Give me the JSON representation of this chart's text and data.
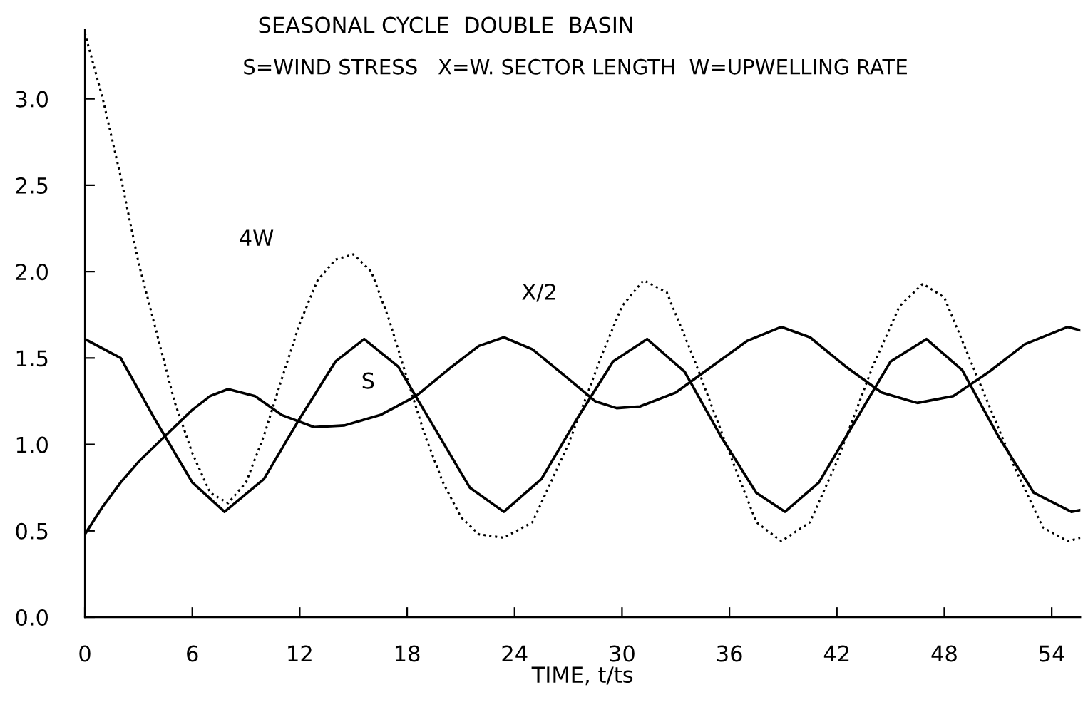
{
  "chart_data": {
    "type": "line",
    "title": "SEASONAL CYCLE  DOUBLE  BASIN",
    "subtitle": "S=WIND STRESS   X=W. SECTOR LENGTH  W=UPWELLING RATE",
    "xlabel": "TIME, t/ts",
    "xlim": [
      0,
      55.6
    ],
    "ylim": [
      0,
      3.4
    ],
    "xticks": [
      0,
      6,
      12,
      18,
      24,
      30,
      36,
      42,
      48,
      54
    ],
    "yticks": [
      {
        "value": 0,
        "label": "0.0"
      },
      {
        "value": 0.5,
        "label": "0.5"
      },
      {
        "value": 1,
        "label": "1.0"
      },
      {
        "value": 1.5,
        "label": "1.5"
      },
      {
        "value": 2,
        "label": "2.0"
      },
      {
        "value": 2.5,
        "label": "2.5"
      },
      {
        "value": 3,
        "label": "3.0"
      }
    ],
    "grid": false,
    "legend": false,
    "series": [
      {
        "name": "S",
        "color": "#000000",
        "line_style": "solid",
        "x": [
          0,
          2,
          4,
          6,
          7.8,
          10,
          12,
          14,
          15.6,
          17.5,
          19.5,
          21.5,
          23.4,
          25.5,
          27.5,
          29.5,
          31.4,
          33.5,
          35.5,
          37.5,
          39.1,
          41,
          43,
          45,
          47,
          49,
          51,
          53,
          55.1,
          55.6
        ],
        "values": [
          1.61,
          1.5,
          1.13,
          0.78,
          0.61,
          0.8,
          1.15,
          1.48,
          1.61,
          1.45,
          1.1,
          0.75,
          0.61,
          0.8,
          1.15,
          1.48,
          1.61,
          1.42,
          1.05,
          0.72,
          0.61,
          0.78,
          1.13,
          1.48,
          1.61,
          1.43,
          1.05,
          0.72,
          0.61,
          0.62
        ]
      },
      {
        "name": "X/2",
        "color": "#000000",
        "line_style": "solid",
        "x": [
          0,
          1,
          2,
          3,
          4,
          5,
          6,
          7,
          8,
          9.5,
          11,
          12.8,
          14.5,
          16.5,
          18.5,
          20.5,
          22,
          23.4,
          25,
          27,
          28.5,
          29.7,
          31,
          33,
          35,
          37,
          38.9,
          40.5,
          42.5,
          44.5,
          46.5,
          48.5,
          50.5,
          52.5,
          54.9,
          55.6
        ],
        "values": [
          0.48,
          0.64,
          0.78,
          0.9,
          1.0,
          1.1,
          1.2,
          1.28,
          1.32,
          1.28,
          1.17,
          1.1,
          1.11,
          1.17,
          1.28,
          1.45,
          1.57,
          1.62,
          1.55,
          1.38,
          1.25,
          1.21,
          1.22,
          1.3,
          1.45,
          1.6,
          1.68,
          1.62,
          1.45,
          1.3,
          1.24,
          1.28,
          1.42,
          1.58,
          1.68,
          1.66
        ]
      },
      {
        "name": "4W",
        "color": "#000000",
        "line_style": "dotted",
        "x": [
          0,
          1,
          2,
          3,
          4,
          5,
          6,
          7,
          8,
          9,
          10,
          11,
          12,
          13,
          14,
          15,
          16,
          17,
          18,
          19,
          20,
          21,
          22,
          23.4,
          25,
          27,
          29,
          30,
          31.2,
          32.5,
          34,
          36,
          37.5,
          38.9,
          40.5,
          42,
          44,
          45.5,
          46.8,
          48,
          50,
          52,
          53.5,
          54.9,
          55.6
        ],
        "values": [
          3.38,
          3.0,
          2.55,
          2.05,
          1.65,
          1.25,
          0.95,
          0.72,
          0.66,
          0.78,
          1.05,
          1.38,
          1.7,
          1.95,
          2.07,
          2.1,
          2.0,
          1.72,
          1.38,
          1.05,
          0.78,
          0.58,
          0.48,
          0.46,
          0.55,
          1.0,
          1.55,
          1.8,
          1.95,
          1.88,
          1.5,
          0.95,
          0.55,
          0.44,
          0.55,
          0.9,
          1.45,
          1.8,
          1.93,
          1.85,
          1.35,
          0.85,
          0.52,
          0.44,
          0.46
        ]
      }
    ]
  }
}
